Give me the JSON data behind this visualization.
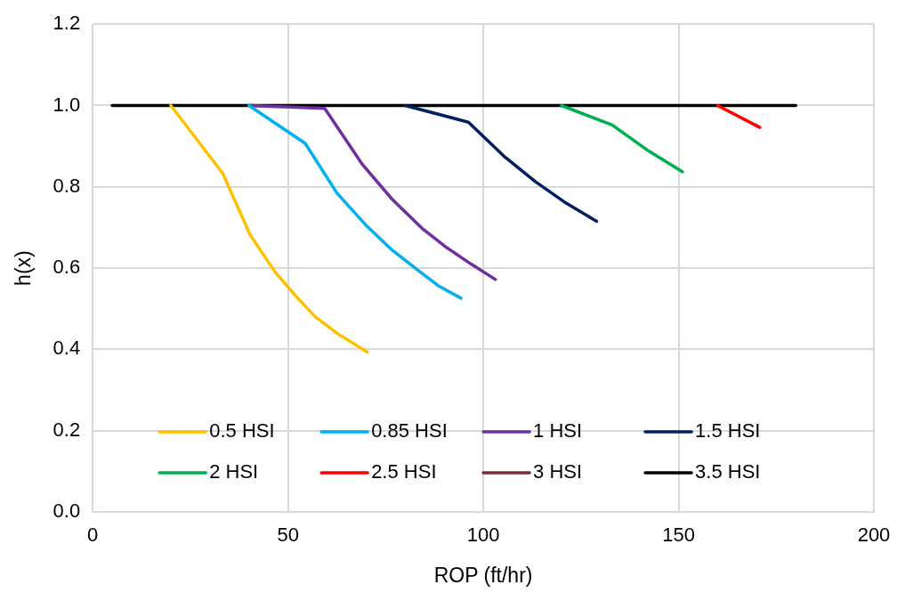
{
  "chart_data": {
    "type": "line",
    "xlabel": "ROP (ft/hr)",
    "ylabel": "h(x)",
    "xlim": [
      0,
      200
    ],
    "xticks": [
      0,
      50,
      100,
      150,
      200
    ],
    "ylim": [
      0,
      1.2
    ],
    "yticks": [
      {
        "value": 0,
        "label": "0.0"
      },
      {
        "value": 0.2,
        "label": "0.2"
      },
      {
        "value": 0.4,
        "label": "0.4"
      },
      {
        "value": 0.6,
        "label": "0.6"
      },
      {
        "value": 0.8,
        "label": "0.8"
      },
      {
        "value": 1,
        "label": "1.0"
      },
      {
        "value": 1.2,
        "label": "1.2"
      }
    ],
    "grid": true,
    "legend": "bottom",
    "marker": "none",
    "line_style": "solid",
    "series": [
      {
        "name": "0.5 HSI",
        "color": "#ffc000",
        "x": [
          20,
          33.3,
          40.4,
          46.8,
          52.3,
          57,
          62.5,
          70.3
        ],
        "values": [
          1,
          0.833,
          0.68,
          0.589,
          0.528,
          0.48,
          0.44,
          0.393
        ]
      },
      {
        "name": "0.85 HSI",
        "color": "#00b0f0",
        "x": [
          40,
          54.4,
          62.5,
          70,
          76.8,
          83.1,
          88.4,
          94.3
        ],
        "values": [
          1,
          0.907,
          0.785,
          0.705,
          0.643,
          0.596,
          0.557,
          0.526
        ]
      },
      {
        "name": "1 HSI",
        "color": "#7030a0",
        "x": [
          40,
          59.4,
          68.9,
          76.6,
          84.3,
          90.7,
          96.7,
          103.1
        ],
        "values": [
          1,
          0.993,
          0.857,
          0.77,
          0.698,
          0.65,
          0.611,
          0.572
        ]
      },
      {
        "name": "1.5 HSI",
        "color": "#002060",
        "x": [
          80,
          96.2,
          105.2,
          113.3,
          120.7,
          129
        ],
        "values": [
          1,
          0.959,
          0.876,
          0.813,
          0.763,
          0.715
        ]
      },
      {
        "name": "2 HSI",
        "color": "#00b050",
        "x": [
          120,
          133,
          142.5,
          151
        ],
        "values": [
          1,
          0.952,
          0.887,
          0.837
        ]
      },
      {
        "name": "2.5 HSI",
        "color": "#ff0000",
        "x": [
          160,
          170.8
        ],
        "values": [
          1,
          0.946
        ]
      },
      {
        "name": "3 HSI",
        "color": "#7b2c2c"
      },
      {
        "name": "3.5 HSI",
        "color": "#000000",
        "x": [
          5,
          180
        ],
        "values": [
          1,
          1
        ]
      }
    ]
  }
}
